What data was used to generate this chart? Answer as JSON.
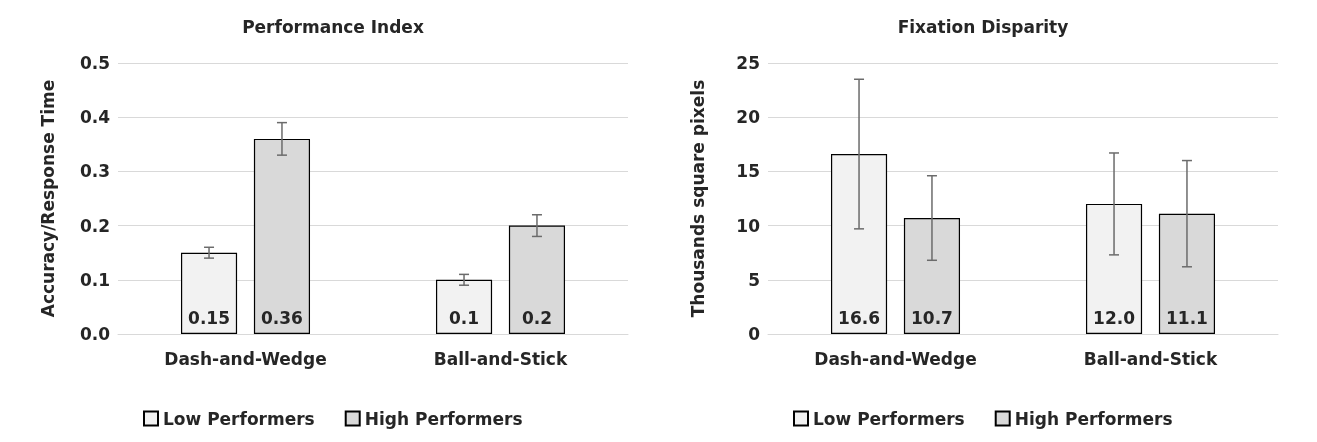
{
  "chart_data": [
    {
      "type": "bar",
      "title": "Performance Index",
      "ylabel": "Accuracy/Response Time",
      "categories": [
        "Dash-and-Wedge",
        "Ball-and-Stick"
      ],
      "series": [
        {
          "name": "Low Performers",
          "color": "#f2f2f2",
          "values": [
            0.15,
            0.1
          ],
          "errors": [
            0.01,
            0.01
          ],
          "value_labels": [
            "0.15",
            "0.1"
          ]
        },
        {
          "name": "High Performers",
          "color": "#d9d9d9",
          "values": [
            0.36,
            0.2
          ],
          "errors": [
            0.03,
            0.02
          ],
          "value_labels": [
            "0.36",
            "0.2"
          ]
        }
      ],
      "ylim": [
        0,
        0.5
      ],
      "yticks": [
        {
          "value": 0,
          "label": "0.0"
        },
        0.1,
        0.2,
        0.3,
        0.4,
        0.5
      ],
      "grid": "y",
      "legend": "bottom left"
    },
    {
      "type": "bar",
      "title": "Fixation Disparity",
      "ylabel": "Thousands square pixels",
      "categories": [
        "Dash-and-Wedge",
        "Ball-and-Stick"
      ],
      "series": [
        {
          "name": "Low Performers",
          "color": "#f2f2f2",
          "values": [
            16.6,
            12.0
          ],
          "errors": [
            6.9,
            4.7
          ],
          "value_labels": [
            "16.6",
            "12.0"
          ]
        },
        {
          "name": "High Performers",
          "color": "#d9d9d9",
          "values": [
            10.7,
            11.1
          ],
          "errors": [
            3.9,
            4.9
          ],
          "value_labels": [
            "10.7",
            "11.1"
          ]
        }
      ],
      "ylim": [
        0,
        25
      ],
      "yticks": [
        0,
        5,
        10,
        15,
        20,
        25
      ],
      "grid": "y",
      "legend": "bottom left"
    }
  ]
}
